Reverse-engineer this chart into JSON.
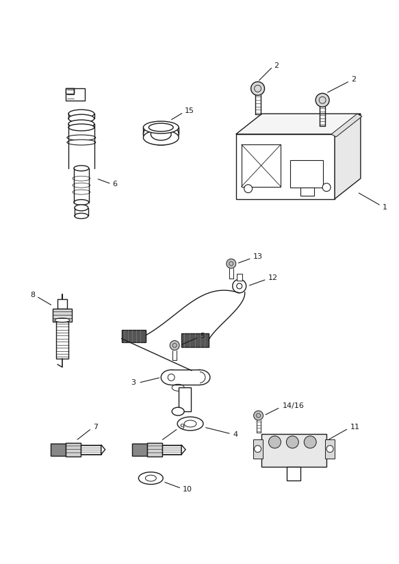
{
  "bg_color": "#ffffff",
  "line_color": "#1a1a1a",
  "label_color": "#1a1a1a",
  "fig_width": 5.83,
  "fig_height": 8.24,
  "dpi": 100
}
